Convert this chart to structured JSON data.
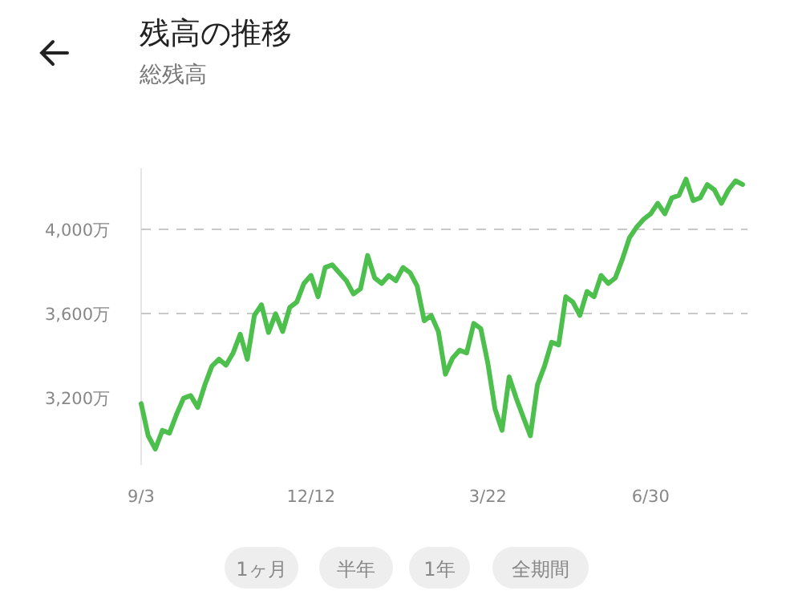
{
  "chart_data": {
    "type": "line",
    "title": "残高の推移",
    "subtitle": "総残高",
    "color": "#4cbf4c",
    "line_style": "solid",
    "marker": "none",
    "grid": false,
    "categories": [
      "9/3",
      null,
      null,
      null,
      null,
      null,
      null,
      null,
      null,
      null,
      null,
      null,
      null,
      null,
      null,
      null,
      null,
      null,
      null,
      null,
      null,
      null,
      null,
      null,
      "12/12",
      null,
      null,
      null,
      null,
      null,
      null,
      null,
      null,
      null,
      null,
      null,
      null,
      null,
      null,
      null,
      null,
      null,
      null,
      null,
      null,
      null,
      null,
      null,
      null,
      "3/22",
      null,
      null,
      null,
      null,
      null,
      null,
      null,
      null,
      null,
      null,
      null,
      null,
      null,
      null,
      null,
      null,
      null,
      null,
      null,
      null,
      null,
      null,
      "6/30",
      null,
      null,
      null,
      null,
      null,
      null,
      null,
      null,
      null,
      null,
      null,
      null,
      null
    ],
    "values": [
      3172,
      3019,
      2956,
      3045,
      3032,
      3121,
      3198,
      3210,
      3154,
      3261,
      3350,
      3383,
      3355,
      3413,
      3502,
      3383,
      3591,
      3642,
      3510,
      3599,
      3515,
      3629,
      3655,
      3743,
      3781,
      3680,
      3819,
      3832,
      3794,
      3756,
      3693,
      3718,
      3876,
      3769,
      3743,
      3781,
      3756,
      3819,
      3794,
      3731,
      3566,
      3591,
      3515,
      3312,
      3388,
      3426,
      3413,
      3553,
      3528,
      3362,
      3147,
      3045,
      3299,
      3198,
      3108,
      3019,
      3261,
      3350,
      3464,
      3451,
      3680,
      3655,
      3591,
      3705,
      3680,
      3781,
      3743,
      3769,
      3858,
      3960,
      4010,
      4048,
      4074,
      4124,
      4074,
      4150,
      4162,
      4239,
      4137,
      4150,
      4213,
      4188,
      4124,
      4188,
      4231,
      4213
    ],
    "ylim": [
      2880,
      4290
    ],
    "yticks": [
      {
        "value": 3200,
        "label": "3,200万"
      },
      {
        "value": 3600,
        "label": "3,600万"
      },
      {
        "value": 4000,
        "label": "4,000万"
      }
    ],
    "ref_lines": [
      {
        "axis": "y",
        "value": 3600,
        "label": null,
        "color": "#c8c8c8",
        "line_style": "dashed"
      },
      {
        "axis": "y",
        "value": 4000,
        "label": null,
        "color": "#c8c8c8",
        "line_style": "dashed"
      }
    ],
    "annotations": [
      "1ヶ月",
      "半年",
      "1年",
      "全期間"
    ]
  }
}
